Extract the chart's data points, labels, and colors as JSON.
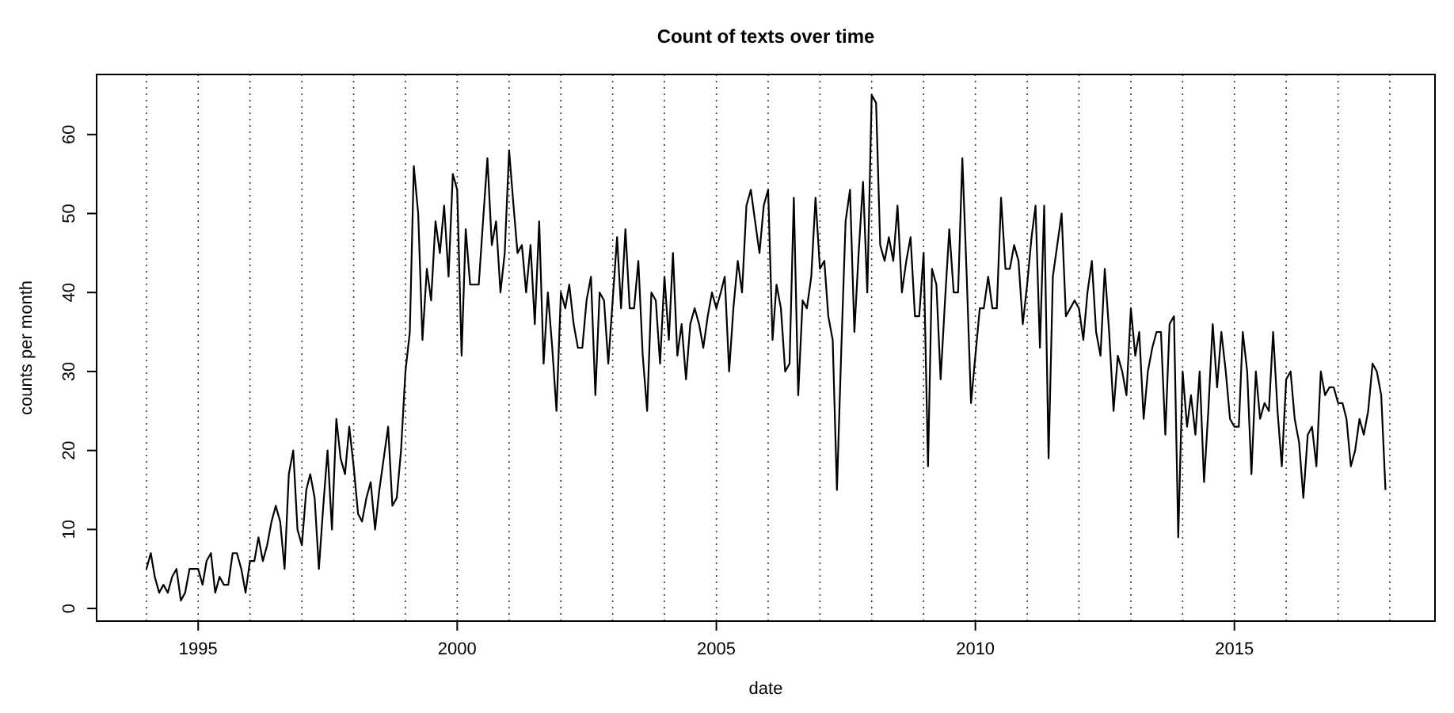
{
  "chart_data": {
    "type": "line",
    "title": "Count of texts over time",
    "xlabel": "date",
    "ylabel": "counts per month",
    "color": "#000000",
    "x": [
      "1994-01",
      "1994-02",
      "1994-03",
      "1994-04",
      "1994-05",
      "1994-06",
      "1994-07",
      "1994-08",
      "1994-09",
      "1994-10",
      "1994-11",
      "1994-12",
      "1995-01",
      "1995-02",
      "1995-03",
      "1995-04",
      "1995-05",
      "1995-06",
      "1995-07",
      "1995-08",
      "1995-09",
      "1995-10",
      "1995-11",
      "1995-12",
      "1996-01",
      "1996-02",
      "1996-03",
      "1996-04",
      "1996-05",
      "1996-06",
      "1996-07",
      "1996-08",
      "1996-09",
      "1996-10",
      "1996-11",
      "1996-12",
      "1997-01",
      "1997-02",
      "1997-03",
      "1997-04",
      "1997-05",
      "1997-06",
      "1997-07",
      "1997-08",
      "1997-09",
      "1997-10",
      "1997-11",
      "1997-12",
      "1998-01",
      "1998-02",
      "1998-03",
      "1998-04",
      "1998-05",
      "1998-06",
      "1998-07",
      "1998-08",
      "1998-09",
      "1998-10",
      "1998-11",
      "1998-12",
      "1999-01",
      "1999-02",
      "1999-03",
      "1999-04",
      "1999-05",
      "1999-06",
      "1999-07",
      "1999-08",
      "1999-09",
      "1999-10",
      "1999-11",
      "1999-12",
      "2000-01",
      "2000-02",
      "2000-03",
      "2000-04",
      "2000-05",
      "2000-06",
      "2000-07",
      "2000-08",
      "2000-09",
      "2000-10",
      "2000-11",
      "2000-12",
      "2001-01",
      "2001-02",
      "2001-03",
      "2001-04",
      "2001-05",
      "2001-06",
      "2001-07",
      "2001-08",
      "2001-09",
      "2001-10",
      "2001-11",
      "2001-12",
      "2002-01",
      "2002-02",
      "2002-03",
      "2002-04",
      "2002-05",
      "2002-06",
      "2002-07",
      "2002-08",
      "2002-09",
      "2002-10",
      "2002-11",
      "2002-12",
      "2003-01",
      "2003-02",
      "2003-03",
      "2003-04",
      "2003-05",
      "2003-06",
      "2003-07",
      "2003-08",
      "2003-09",
      "2003-10",
      "2003-11",
      "2003-12",
      "2004-01",
      "2004-02",
      "2004-03",
      "2004-04",
      "2004-05",
      "2004-06",
      "2004-07",
      "2004-08",
      "2004-09",
      "2004-10",
      "2004-11",
      "2004-12",
      "2005-01",
      "2005-02",
      "2005-03",
      "2005-04",
      "2005-05",
      "2005-06",
      "2005-07",
      "2005-08",
      "2005-09",
      "2005-10",
      "2005-11",
      "2005-12",
      "2006-01",
      "2006-02",
      "2006-03",
      "2006-04",
      "2006-05",
      "2006-06",
      "2006-07",
      "2006-08",
      "2006-09",
      "2006-10",
      "2006-11",
      "2006-12",
      "2007-01",
      "2007-02",
      "2007-03",
      "2007-04",
      "2007-05",
      "2007-06",
      "2007-07",
      "2007-08",
      "2007-09",
      "2007-10",
      "2007-11",
      "2007-12",
      "2008-01",
      "2008-02",
      "2008-03",
      "2008-04",
      "2008-05",
      "2008-06",
      "2008-07",
      "2008-08",
      "2008-09",
      "2008-10",
      "2008-11",
      "2008-12",
      "2009-01",
      "2009-02",
      "2009-03",
      "2009-04",
      "2009-05",
      "2009-06",
      "2009-07",
      "2009-08",
      "2009-09",
      "2009-10",
      "2009-11",
      "2009-12",
      "2010-01",
      "2010-02",
      "2010-03",
      "2010-04",
      "2010-05",
      "2010-06",
      "2010-07",
      "2010-08",
      "2010-09",
      "2010-10",
      "2010-11",
      "2010-12",
      "2011-01",
      "2011-02",
      "2011-03",
      "2011-04",
      "2011-05",
      "2011-06",
      "2011-07",
      "2011-08",
      "2011-09",
      "2011-10",
      "2011-11",
      "2011-12",
      "2012-01",
      "2012-02",
      "2012-03",
      "2012-04",
      "2012-05",
      "2012-06",
      "2012-07",
      "2012-08",
      "2012-09",
      "2012-10",
      "2012-11",
      "2012-12",
      "2013-01",
      "2013-02",
      "2013-03",
      "2013-04",
      "2013-05",
      "2013-06",
      "2013-07",
      "2013-08",
      "2013-09",
      "2013-10",
      "2013-11",
      "2013-12",
      "2014-01",
      "2014-02",
      "2014-03",
      "2014-04",
      "2014-05",
      "2014-06",
      "2014-07",
      "2014-08",
      "2014-09",
      "2014-10",
      "2014-11",
      "2014-12",
      "2015-01",
      "2015-02",
      "2015-03",
      "2015-04",
      "2015-05",
      "2015-06",
      "2015-07",
      "2015-08",
      "2015-09",
      "2015-10",
      "2015-11",
      "2015-12",
      "2016-01",
      "2016-02",
      "2016-03",
      "2016-04",
      "2016-05",
      "2016-06",
      "2016-07",
      "2016-08",
      "2016-09",
      "2016-10",
      "2016-11",
      "2016-12",
      "2017-01",
      "2017-02",
      "2017-03",
      "2017-04",
      "2017-05",
      "2017-06",
      "2017-07",
      "2017-08",
      "2017-09",
      "2017-10",
      "2017-11",
      "2017-12"
    ],
    "values": [
      5,
      7,
      4,
      2,
      3,
      2,
      4,
      5,
      1,
      2,
      5,
      5,
      5,
      3,
      6,
      7,
      2,
      4,
      3,
      3,
      7,
      7,
      5,
      2,
      6,
      6,
      9,
      6,
      8,
      11,
      13,
      11,
      5,
      17,
      20,
      10,
      8,
      15,
      17,
      14,
      5,
      13,
      20,
      10,
      24,
      19,
      17,
      23,
      18,
      12,
      11,
      14,
      16,
      10,
      15,
      19,
      23,
      13,
      14,
      20,
      30,
      35,
      56,
      50,
      34,
      43,
      39,
      49,
      45,
      51,
      42,
      55,
      53,
      32,
      48,
      41,
      41,
      41,
      49,
      57,
      46,
      49,
      40,
      45,
      58,
      51,
      45,
      46,
      40,
      46,
      36,
      49,
      31,
      40,
      33,
      25,
      40,
      38,
      41,
      36,
      33,
      33,
      39,
      42,
      27,
      40,
      39,
      31,
      39,
      47,
      38,
      48,
      38,
      38,
      44,
      32,
      25,
      40,
      39,
      31,
      42,
      34,
      45,
      32,
      36,
      29,
      36,
      38,
      36,
      33,
      37,
      40,
      38,
      40,
      42,
      30,
      38,
      44,
      40,
      51,
      53,
      49,
      45,
      51,
      53,
      34,
      41,
      38,
      30,
      31,
      52,
      27,
      39,
      38,
      42,
      52,
      43,
      44,
      37,
      34,
      15,
      33,
      49,
      53,
      35,
      45,
      54,
      40,
      65,
      64,
      46,
      44,
      47,
      44,
      51,
      40,
      44,
      47,
      37,
      37,
      45,
      18,
      43,
      41,
      29,
      39,
      48,
      40,
      40,
      57,
      42,
      26,
      32,
      38,
      38,
      42,
      38,
      38,
      52,
      43,
      43,
      46,
      44,
      36,
      41,
      47,
      51,
      33,
      51,
      19,
      42,
      46,
      50,
      37,
      38,
      39,
      38,
      34,
      40,
      44,
      35,
      32,
      43,
      35,
      25,
      32,
      30,
      27,
      38,
      32,
      35,
      24,
      30,
      33,
      35,
      35,
      22,
      36,
      37,
      9,
      30,
      23,
      27,
      22,
      30,
      16,
      25,
      36,
      28,
      35,
      30,
      24,
      23,
      23,
      35,
      30,
      17,
      30,
      24,
      26,
      25,
      35,
      25,
      18,
      29,
      30,
      24,
      21,
      14,
      22,
      23,
      18,
      30,
      27,
      28,
      28,
      26,
      26,
      24,
      18,
      20,
      24,
      22,
      25,
      31,
      30,
      27,
      15
    ],
    "xlim": [
      "1993-01-15",
      "2018-11-15"
    ],
    "ylim": [
      -1.6,
      67.6
    ],
    "xticks": [
      "1995",
      "2000",
      "2005",
      "2010",
      "2015"
    ],
    "yticks": [
      0,
      10,
      20,
      30,
      40,
      50,
      60
    ],
    "ref_lines": [
      {
        "axis": "x",
        "value": "1994",
        "line_style": "dotted"
      },
      {
        "axis": "x",
        "value": "1995",
        "line_style": "dotted"
      },
      {
        "axis": "x",
        "value": "1996",
        "line_style": "dotted"
      },
      {
        "axis": "x",
        "value": "1997",
        "line_style": "dotted"
      },
      {
        "axis": "x",
        "value": "1998",
        "line_style": "dotted"
      },
      {
        "axis": "x",
        "value": "1999",
        "line_style": "dotted"
      },
      {
        "axis": "x",
        "value": "2000",
        "line_style": "dotted"
      },
      {
        "axis": "x",
        "value": "2001",
        "line_style": "dotted"
      },
      {
        "axis": "x",
        "value": "2002",
        "line_style": "dotted"
      },
      {
        "axis": "x",
        "value": "2003",
        "line_style": "dotted"
      },
      {
        "axis": "x",
        "value": "2004",
        "line_style": "dotted"
      },
      {
        "axis": "x",
        "value": "2005",
        "line_style": "dotted"
      },
      {
        "axis": "x",
        "value": "2006",
        "line_style": "dotted"
      },
      {
        "axis": "x",
        "value": "2007",
        "line_style": "dotted"
      },
      {
        "axis": "x",
        "value": "2008",
        "line_style": "dotted"
      },
      {
        "axis": "x",
        "value": "2009",
        "line_style": "dotted"
      },
      {
        "axis": "x",
        "value": "2010",
        "line_style": "dotted"
      },
      {
        "axis": "x",
        "value": "2011",
        "line_style": "dotted"
      },
      {
        "axis": "x",
        "value": "2012",
        "line_style": "dotted"
      },
      {
        "axis": "x",
        "value": "2013",
        "line_style": "dotted"
      },
      {
        "axis": "x",
        "value": "2014",
        "line_style": "dotted"
      },
      {
        "axis": "x",
        "value": "2015",
        "line_style": "dotted"
      },
      {
        "axis": "x",
        "value": "2016",
        "line_style": "dotted"
      },
      {
        "axis": "x",
        "value": "2017",
        "line_style": "dotted"
      },
      {
        "axis": "x",
        "value": "2018",
        "line_style": "dotted"
      }
    ]
  }
}
